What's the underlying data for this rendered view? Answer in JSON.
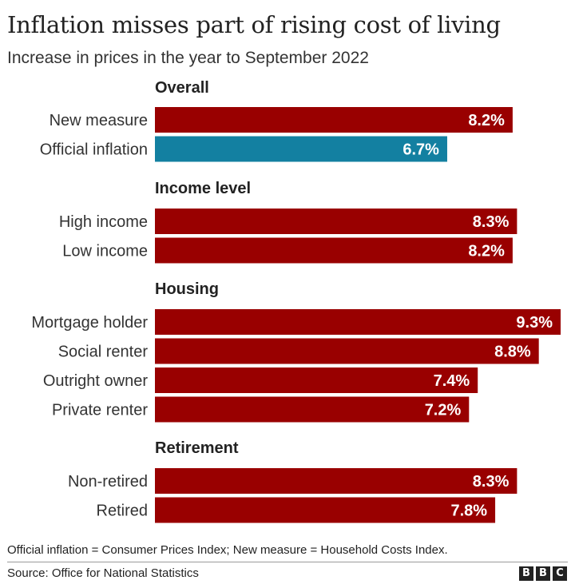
{
  "header": {
    "title": "Inflation misses part of rising cost of living",
    "subtitle": "Increase in prices in the year to September 2022"
  },
  "colors": {
    "primary_bar": "#990000",
    "highlight_bar": "#1380a1",
    "bar_label": "#ffffff"
  },
  "chart_data": {
    "type": "bar",
    "orientation": "horizontal",
    "unit": "%",
    "xlim": [
      0,
      9.5
    ],
    "grid": false,
    "legend": "none",
    "groups": [
      {
        "name": "Overall",
        "bars": [
          {
            "label": "New measure",
            "value": 8.2,
            "value_label": "8.2%",
            "color": "#990000"
          },
          {
            "label": "Official inflation",
            "value": 6.7,
            "value_label": "6.7%",
            "color": "#1380a1"
          }
        ]
      },
      {
        "name": "Income level",
        "bars": [
          {
            "label": "High income",
            "value": 8.3,
            "value_label": "8.3%",
            "color": "#990000"
          },
          {
            "label": "Low income",
            "value": 8.2,
            "value_label": "8.2%",
            "color": "#990000"
          }
        ]
      },
      {
        "name": "Housing",
        "bars": [
          {
            "label": "Mortgage holder",
            "value": 9.3,
            "value_label": "9.3%",
            "color": "#990000"
          },
          {
            "label": "Social renter",
            "value": 8.8,
            "value_label": "8.8%",
            "color": "#990000"
          },
          {
            "label": "Outright owner",
            "value": 7.4,
            "value_label": "7.4%",
            "color": "#990000"
          },
          {
            "label": "Private renter",
            "value": 7.2,
            "value_label": "7.2%",
            "color": "#990000"
          }
        ]
      },
      {
        "name": "Retirement",
        "bars": [
          {
            "label": "Non-retired",
            "value": 8.3,
            "value_label": "8.3%",
            "color": "#990000"
          },
          {
            "label": "Retired",
            "value": 7.8,
            "value_label": "7.8%",
            "color": "#990000"
          }
        ]
      }
    ]
  },
  "footer": {
    "note": "Official inflation = Consumer Prices Index; New measure = Household Costs Index.",
    "source": "Source: Office for National Statistics",
    "logo_letters": [
      "B",
      "B",
      "C"
    ]
  }
}
